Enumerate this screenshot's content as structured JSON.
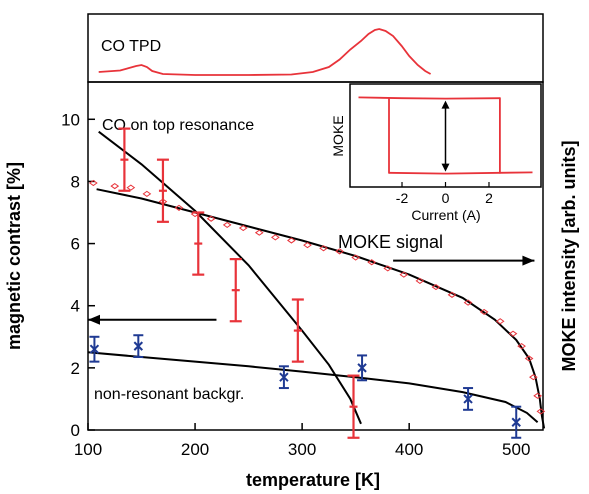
{
  "colors": {
    "axes": "#000000",
    "red": "#e8333a",
    "blue": "#1f3a93",
    "fit": "#000000"
  },
  "chart_data": [
    {
      "type": "line",
      "panel": "top",
      "x_range": [
        100,
        525
      ],
      "series": [
        {
          "name": "CO TPD",
          "points": [
            [
              110,
              0.1
            ],
            [
              130,
              0.13
            ],
            [
              145,
              0.22
            ],
            [
              150,
              0.24
            ],
            [
              155,
              0.2
            ],
            [
              160,
              0.12
            ],
            [
              170,
              0.06
            ],
            [
              200,
              0.04
            ],
            [
              250,
              0.04
            ],
            [
              290,
              0.05
            ],
            [
              310,
              0.1
            ],
            [
              325,
              0.2
            ],
            [
              335,
              0.35
            ],
            [
              345,
              0.55
            ],
            [
              355,
              0.72
            ],
            [
              362,
              0.86
            ],
            [
              368,
              0.94
            ],
            [
              372,
              0.96
            ],
            [
              378,
              0.92
            ],
            [
              385,
              0.82
            ],
            [
              393,
              0.62
            ],
            [
              400,
              0.42
            ],
            [
              408,
              0.24
            ],
            [
              415,
              0.12
            ],
            [
              420,
              0.06
            ]
          ]
        }
      ],
      "labels": {
        "series_label": "CO TPD"
      }
    },
    {
      "type": "scatter",
      "panel": "main",
      "xlabel": "temperature [K]",
      "ylabel_left": "magnetic contrast [%]",
      "ylabel_right": "MOKE intensity [arb. units]",
      "xlim": [
        100,
        525
      ],
      "ylim": [
        0,
        11.2
      ],
      "xticks": [
        100,
        200,
        300,
        400,
        500
      ],
      "yticks": [
        0,
        2,
        4,
        6,
        8,
        10
      ],
      "annotations": {
        "resonance": "CO on top resonance",
        "background": "non-resonant backgr.",
        "moke": "MOKE signal"
      },
      "series": [
        {
          "name": "CO on top resonance",
          "points": [
            [
              134,
              8.7
            ],
            [
              170,
              7.7
            ],
            [
              203,
              6.0
            ],
            [
              238,
              4.5
            ],
            [
              296,
              3.2
            ],
            [
              348,
              0.75
            ]
          ],
          "errors": [
            1.0,
            1.0,
            1.0,
            1.0,
            1.0,
            1.0
          ]
        },
        {
          "name": "non-resonant backgr.",
          "points": [
            [
              106,
              2.6
            ],
            [
              147,
              2.7
            ],
            [
              283,
              1.7
            ],
            [
              356,
              2.0
            ],
            [
              455,
              1.0
            ],
            [
              500,
              0.25
            ]
          ],
          "errors": [
            0.4,
            0.35,
            0.35,
            0.4,
            0.35,
            0.5
          ]
        },
        {
          "name": "MOKE signal",
          "points": [
            [
              105,
              7.95
            ],
            [
              125,
              7.85
            ],
            [
              140,
              7.8
            ],
            [
              155,
              7.6
            ],
            [
              170,
              7.35
            ],
            [
              185,
              7.15
            ],
            [
              200,
              6.95
            ],
            [
              215,
              6.8
            ],
            [
              230,
              6.6
            ],
            [
              245,
              6.5
            ],
            [
              260,
              6.35
            ],
            [
              275,
              6.2
            ],
            [
              290,
              6.1
            ],
            [
              305,
              5.95
            ],
            [
              320,
              5.85
            ],
            [
              335,
              5.75
            ],
            [
              350,
              5.55
            ],
            [
              365,
              5.4
            ],
            [
              380,
              5.2
            ],
            [
              395,
              5.0
            ],
            [
              410,
              4.8
            ],
            [
              425,
              4.6
            ],
            [
              440,
              4.35
            ],
            [
              455,
              4.1
            ],
            [
              470,
              3.8
            ],
            [
              485,
              3.5
            ],
            [
              497,
              3.1
            ],
            [
              505,
              2.7
            ],
            [
              512,
              2.3
            ],
            [
              516,
              1.7
            ],
            [
              520,
              1.1
            ],
            [
              523,
              0.6
            ]
          ]
        }
      ],
      "fits": [
        {
          "name": "resonance fit",
          "points": [
            [
              110,
              9.6
            ],
            [
              150,
              8.55
            ],
            [
              200,
              7.05
            ],
            [
              250,
              5.3
            ],
            [
              300,
              3.2
            ],
            [
              325,
              2.1
            ],
            [
              345,
              1.0
            ],
            [
              355,
              0.2
            ]
          ]
        },
        {
          "name": "background fit",
          "points": [
            [
              100,
              2.5
            ],
            [
              150,
              2.35
            ],
            [
              200,
              2.2
            ],
            [
              250,
              2.05
            ],
            [
              300,
              1.88
            ],
            [
              350,
              1.7
            ],
            [
              400,
              1.5
            ],
            [
              450,
              1.22
            ],
            [
              490,
              0.9
            ],
            [
              510,
              0.55
            ],
            [
              520,
              0.25
            ]
          ]
        },
        {
          "name": "MOKE fit",
          "points": [
            [
              108,
              7.75
            ],
            [
              150,
              7.45
            ],
            [
              200,
              7.0
            ],
            [
              250,
              6.55
            ],
            [
              300,
              6.1
            ],
            [
              350,
              5.6
            ],
            [
              400,
              5.0
            ],
            [
              450,
              4.25
            ],
            [
              480,
              3.55
            ],
            [
              500,
              2.9
            ],
            [
              512,
              2.3
            ],
            [
              518,
              1.7
            ],
            [
              522,
              1.0
            ],
            [
              524,
              0.45
            ],
            [
              526,
              0.05
            ]
          ]
        }
      ],
      "arrows": [
        {
          "direction": "left",
          "from": [
            220,
            3.55
          ],
          "to": [
            100,
            3.55
          ]
        },
        {
          "direction": "right",
          "from": [
            385,
            5.45
          ],
          "to": [
            517,
            5.45
          ]
        }
      ]
    },
    {
      "type": "line",
      "panel": "inset",
      "xlabel": "Current (A)",
      "ylabel": "MOKE",
      "xlim": [
        -4.3,
        4.3
      ],
      "ylim": [
        -1.3,
        1.3
      ],
      "xticks": [
        -2,
        0,
        2
      ],
      "series": [
        {
          "name": "upper branch",
          "points": [
            [
              -4,
              1
            ],
            [
              -2,
              0.98
            ],
            [
              0,
              0.97
            ],
            [
              2.5,
              0.98
            ]
          ]
        },
        {
          "name": "lower branch",
          "points": [
            [
              -2.6,
              -0.98
            ],
            [
              0,
              -1.0
            ],
            [
              2.5,
              -0.98
            ],
            [
              4,
              -0.97
            ]
          ]
        },
        {
          "name": "switching",
          "points": [
            [
              -2.6,
              1
            ],
            [
              -2.6,
              -1
            ]
          ]
        },
        {
          "name": "switching",
          "points": [
            [
              2.5,
              1
            ],
            [
              2.5,
              -1
            ]
          ]
        }
      ],
      "double_arrow": {
        "x": 0,
        "y_top": 0.97,
        "y_bottom": -1.0
      }
    }
  ]
}
